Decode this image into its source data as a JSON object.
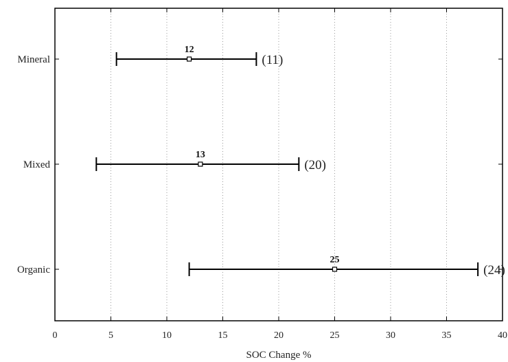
{
  "chart_data": {
    "type": "errorbar",
    "title": "",
    "xlabel": "SOC Change %",
    "ylabel": "",
    "xlim": [
      0,
      40
    ],
    "xticks": [
      0,
      5,
      10,
      15,
      20,
      25,
      30,
      35,
      40
    ],
    "grid": "vertical-dotted",
    "categories": [
      {
        "name": "Mineral",
        "mean": 12,
        "mean_label": "12",
        "low": 5.5,
        "high": 18,
        "n_label": "(11)"
      },
      {
        "name": "Mixed",
        "mean": 13,
        "mean_label": "13",
        "low": 3.7,
        "high": 21.8,
        "n_label": "(20)"
      },
      {
        "name": "Organic",
        "mean": 25,
        "mean_label": "25",
        "low": 12,
        "high": 37.8,
        "n_label": "(24)"
      }
    ]
  }
}
